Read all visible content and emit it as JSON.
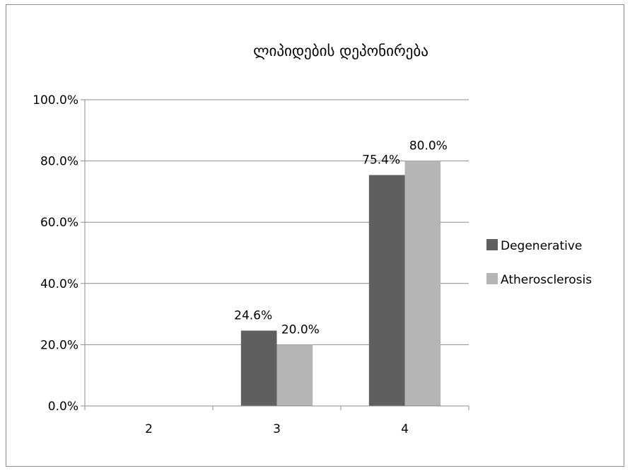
{
  "chart_data": {
    "type": "bar",
    "title": "ლიპიდების დეპონირება",
    "xlabel": "",
    "ylabel": "",
    "categories": [
      "2",
      "3",
      "4"
    ],
    "series": [
      {
        "name": "Degenerative",
        "color": "#5f5f5f",
        "values": [
          0.0,
          24.6,
          75.4
        ],
        "labels": [
          "",
          "24.6%",
          "75.4%"
        ]
      },
      {
        "name": "Atherosclerosis",
        "color": "#b5b5b5",
        "values": [
          0.0,
          20.0,
          80.0
        ],
        "labels": [
          "",
          "20.0%",
          "80.0%"
        ]
      }
    ],
    "ylim": [
      0,
      100
    ],
    "yticks": [
      0,
      20,
      40,
      60,
      80,
      100
    ],
    "ytick_labels": [
      "0.0%",
      "20.0%",
      "40.0%",
      "60.0%",
      "80.0%",
      "100.0%"
    ],
    "grid": true,
    "legend_position": "right"
  }
}
